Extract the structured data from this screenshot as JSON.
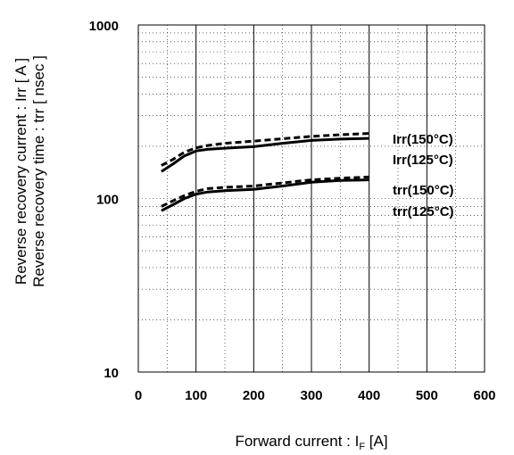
{
  "chart_data": {
    "type": "line",
    "title": "",
    "xlabel": "Forward current : I",
    "xlabel_sub": "F",
    "xlabel_unit": " [A]",
    "ylabel": [
      "Reverse recovery current : Irr [ A ]",
      "Reverse recovery time : trr [ nsec ]"
    ],
    "xlim": [
      0,
      600
    ],
    "ylim": [
      10,
      1000
    ],
    "yscale": "log",
    "x_ticks": [
      "0",
      "100",
      "200",
      "300",
      "400",
      "500",
      "600"
    ],
    "y_ticks": [
      "10",
      "100",
      "1000"
    ],
    "grid": "major solid vertical, dotted minor",
    "series": [
      {
        "name": "Irr(150°C)",
        "style": "dashed",
        "x": [
          40,
          60,
          80,
          100,
          120,
          150,
          200,
          250,
          300,
          350,
          400
        ],
        "values": [
          155,
          168,
          185,
          196,
          202,
          208,
          214,
          221,
          228,
          233,
          237
        ]
      },
      {
        "name": "Irr(125°C)",
        "style": "solid",
        "x": [
          40,
          60,
          80,
          100,
          120,
          150,
          200,
          250,
          300,
          350,
          400
        ],
        "values": [
          143,
          158,
          176,
          188,
          192,
          195,
          199,
          208,
          216,
          220,
          222
        ]
      },
      {
        "name": "trr(150°C)",
        "style": "dashed",
        "x": [
          40,
          60,
          80,
          100,
          120,
          150,
          200,
          250,
          300,
          350,
          400
        ],
        "values": [
          90,
          97,
          104,
          110,
          114,
          116,
          118,
          123,
          128,
          131,
          133
        ]
      },
      {
        "name": "trr(125°C)",
        "style": "solid",
        "x": [
          40,
          60,
          80,
          100,
          120,
          150,
          200,
          250,
          300,
          350,
          400
        ],
        "values": [
          85,
          92,
          100,
          106,
          109,
          111,
          113,
          118,
          124,
          127,
          128
        ]
      }
    ],
    "colors": {
      "line": "#000000",
      "grid": "#000000",
      "background": "#ffffff"
    }
  }
}
